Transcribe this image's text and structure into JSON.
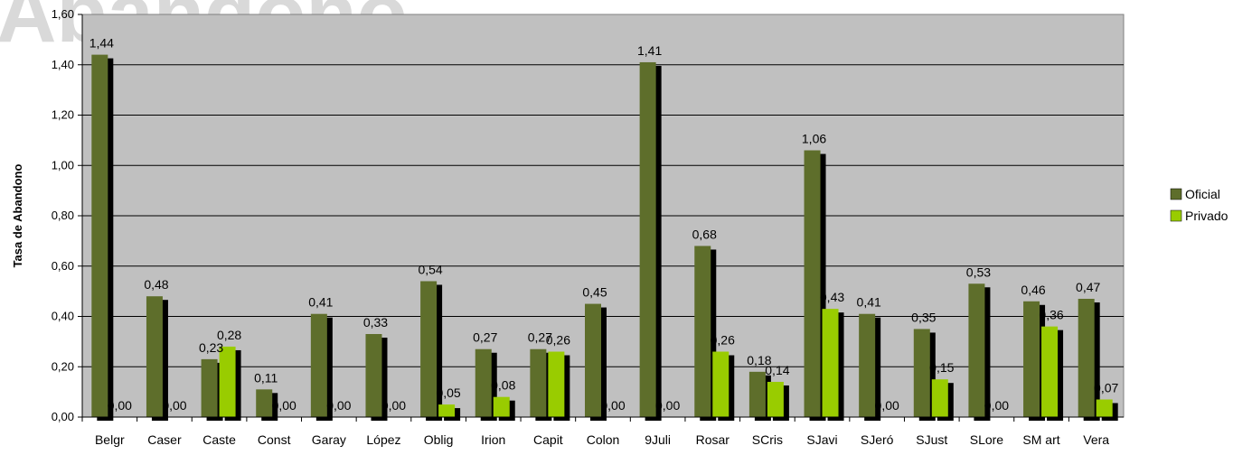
{
  "chart_data": {
    "type": "bar",
    "title": "Abandono",
    "ylabel": "Tasa de Abandono",
    "xlabel": "",
    "ylim": [
      0,
      1.6
    ],
    "ytick_values": [
      0,
      0.2,
      0.4,
      0.6,
      0.8,
      1.0,
      1.2,
      1.4,
      1.6
    ],
    "ytick_labels": [
      "0,00",
      "0,20",
      "0,40",
      "0,60",
      "0,80",
      "1,00",
      "1,20",
      "1,40",
      "1,60"
    ],
    "grid": true,
    "legend_position": "right",
    "categories": [
      "Belgr",
      "Caser",
      "Caste",
      "Const",
      "Garay",
      "López",
      "Oblig",
      "Irion",
      "Capit",
      "Colon",
      "9Juli",
      "Rosar",
      "SCris",
      "SJavi",
      "SJeró",
      "SJust",
      "SLore",
      "SM art",
      "Vera"
    ],
    "series": [
      {
        "name": "Oficial",
        "color": "#5e6e2b",
        "values": [
          1.44,
          0.48,
          0.23,
          0.11,
          0.41,
          0.33,
          0.54,
          0.27,
          0.27,
          0.45,
          1.41,
          0.68,
          0.18,
          1.06,
          0.41,
          0.35,
          0.53,
          0.46,
          0.47
        ],
        "labels": [
          "1,44",
          "0,48",
          "0,23",
          "0,11",
          "0,41",
          "0,33",
          "0,54",
          "0,27",
          "0,27",
          "0,45",
          "1,41",
          "0,68",
          "0,18",
          "1,06",
          "0,41",
          "0,35",
          "0,53",
          "0,46",
          "0,47"
        ]
      },
      {
        "name": "Privado",
        "color": "#99cc00",
        "values": [
          0,
          0,
          0.28,
          0,
          0,
          0,
          0.05,
          0.08,
          0.26,
          0,
          0,
          0.26,
          0.14,
          0.43,
          0,
          0.15,
          0,
          0.36,
          0.07
        ],
        "labels": [
          "0,00",
          "0,00",
          "0,28",
          "0,00",
          "0,00",
          "0,00",
          "0,05",
          "0,08",
          "0,26",
          "0,00",
          "0,00",
          "0,26",
          "0,14",
          "0,43",
          "0,00",
          "0,15",
          "0,00",
          "0,36",
          "0,07"
        ]
      }
    ],
    "colors": {
      "plot_background": "#c0c0c0",
      "gridline": "#000000",
      "shadow": "#000000",
      "watermark": "#d9d9d9"
    }
  }
}
